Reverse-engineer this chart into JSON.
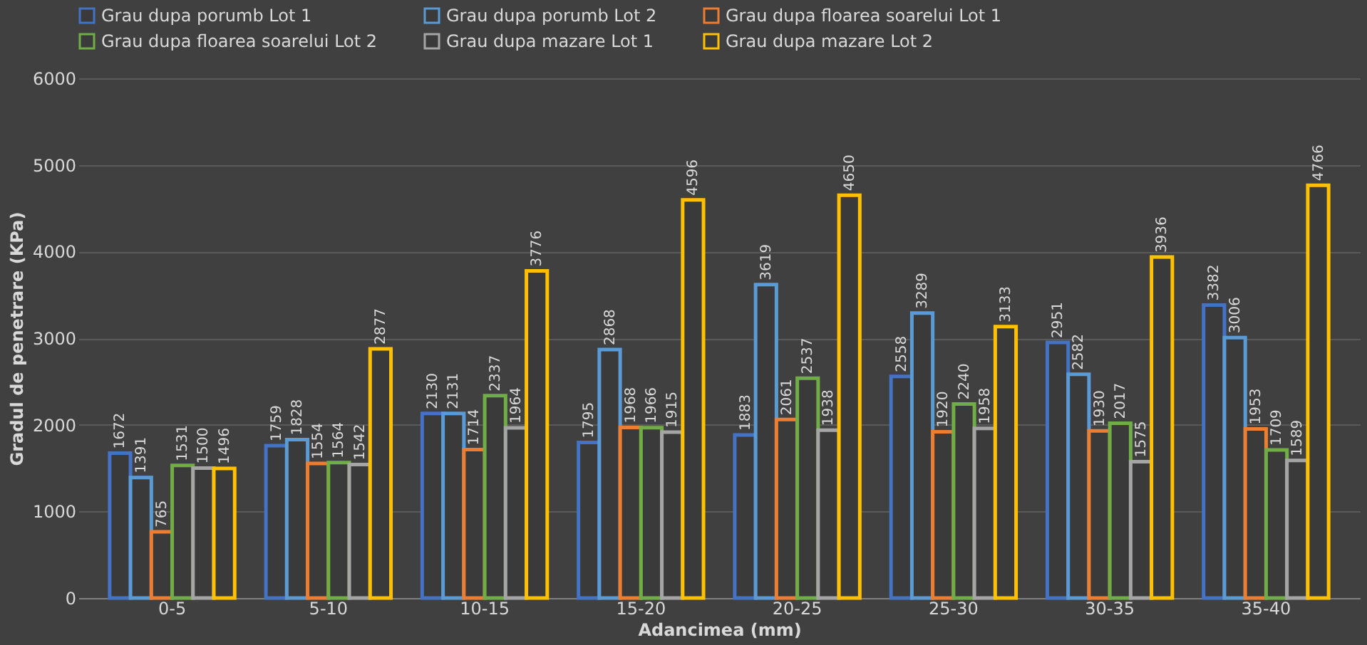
{
  "chart_data": {
    "type": "bar",
    "xlabel": "Adancimea (mm)",
    "ylabel": "Gradul de penetrare (KPa)",
    "categories": [
      "0-5",
      "5-10",
      "10-15",
      "15-20",
      "20-25",
      "25-30",
      "30-35",
      "35-40"
    ],
    "series": [
      {
        "name": "Grau dupa porumb Lot 1",
        "color": "#4472c4",
        "values": [
          1672,
          1759,
          2130,
          1795,
          1883,
          2558,
          2951,
          3382
        ]
      },
      {
        "name": "Grau dupa porumb Lot 2",
        "color": "#5b9bd5",
        "values": [
          1391,
          1828,
          2131,
          2868,
          3619,
          3289,
          2582,
          3006
        ]
      },
      {
        "name": "Grau dupa floarea soarelui Lot 1",
        "color": "#ed7d31",
        "values": [
          765,
          1554,
          1714,
          1968,
          2061,
          1920,
          1930,
          1953
        ]
      },
      {
        "name": "Grau dupa floarea soarelui Lot 2",
        "color": "#70ad47",
        "values": [
          1531,
          1564,
          2337,
          1966,
          2537,
          2240,
          2017,
          1709
        ]
      },
      {
        "name": "Grau dupa mazare Lot 1",
        "color": "#a5a5a5",
        "values": [
          1500,
          1542,
          1964,
          1915,
          1938,
          1958,
          1575,
          1589
        ]
      },
      {
        "name": "Grau dupa mazare Lot 2",
        "color": "#ffc000",
        "values": [
          1496,
          2877,
          3776,
          4596,
          4650,
          3133,
          3936,
          4766
        ]
      }
    ],
    "ylim": [
      0,
      6000
    ],
    "yticks": [
      0,
      1000,
      2000,
      3000,
      4000,
      5000,
      6000
    ],
    "grid": "y",
    "legend": "top",
    "data_labels": true
  }
}
